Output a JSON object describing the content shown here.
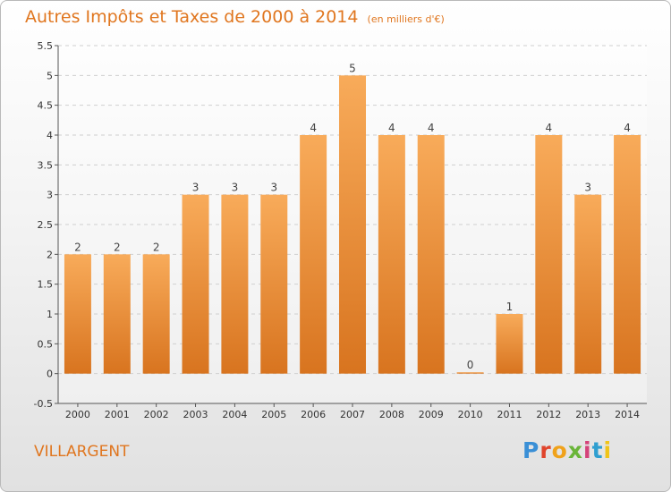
{
  "header": {
    "title": "Autres Impôts et Taxes de 2000 à 2014",
    "unit_note": "(en milliers d'€)"
  },
  "footer": {
    "location": "VILLARGENT",
    "brand": "Proxiti",
    "brand_colors": [
      "#3a8fd6",
      "#e0442c",
      "#f0a21b",
      "#6ab539",
      "#d4427a",
      "#2f9fd0",
      "#f0c419"
    ]
  },
  "colors": {
    "accent": "#e0761f",
    "bar_light": "#f8ab5a",
    "bar_dark": "#d8741f",
    "grid": "#cfcfcf",
    "axis": "#555555"
  },
  "chart_data": {
    "type": "bar",
    "title": "Autres Impôts et Taxes de 2000 à 2014",
    "subtitle": "(en milliers d'€)",
    "xlabel": "",
    "ylabel": "",
    "categories": [
      "2000",
      "2001",
      "2002",
      "2003",
      "2004",
      "2005",
      "2006",
      "2007",
      "2008",
      "2009",
      "2010",
      "2011",
      "2012",
      "2013",
      "2014"
    ],
    "values": [
      2,
      2,
      2,
      3,
      3,
      3,
      4,
      5,
      4,
      4,
      0,
      1,
      4,
      3,
      4
    ],
    "data_labels": [
      "2",
      "2",
      "2",
      "3",
      "3",
      "3",
      "4",
      "5",
      "4",
      "4",
      "0",
      "1",
      "4",
      "3",
      "4"
    ],
    "ylim": [
      -0.5,
      5.5
    ],
    "yticks": [
      "-0.5",
      "0",
      "0.5",
      "1",
      "1.5",
      "2",
      "2.5",
      "3",
      "3.5",
      "4",
      "4.5",
      "5",
      "5.5"
    ],
    "grid": true,
    "legend": "none"
  }
}
